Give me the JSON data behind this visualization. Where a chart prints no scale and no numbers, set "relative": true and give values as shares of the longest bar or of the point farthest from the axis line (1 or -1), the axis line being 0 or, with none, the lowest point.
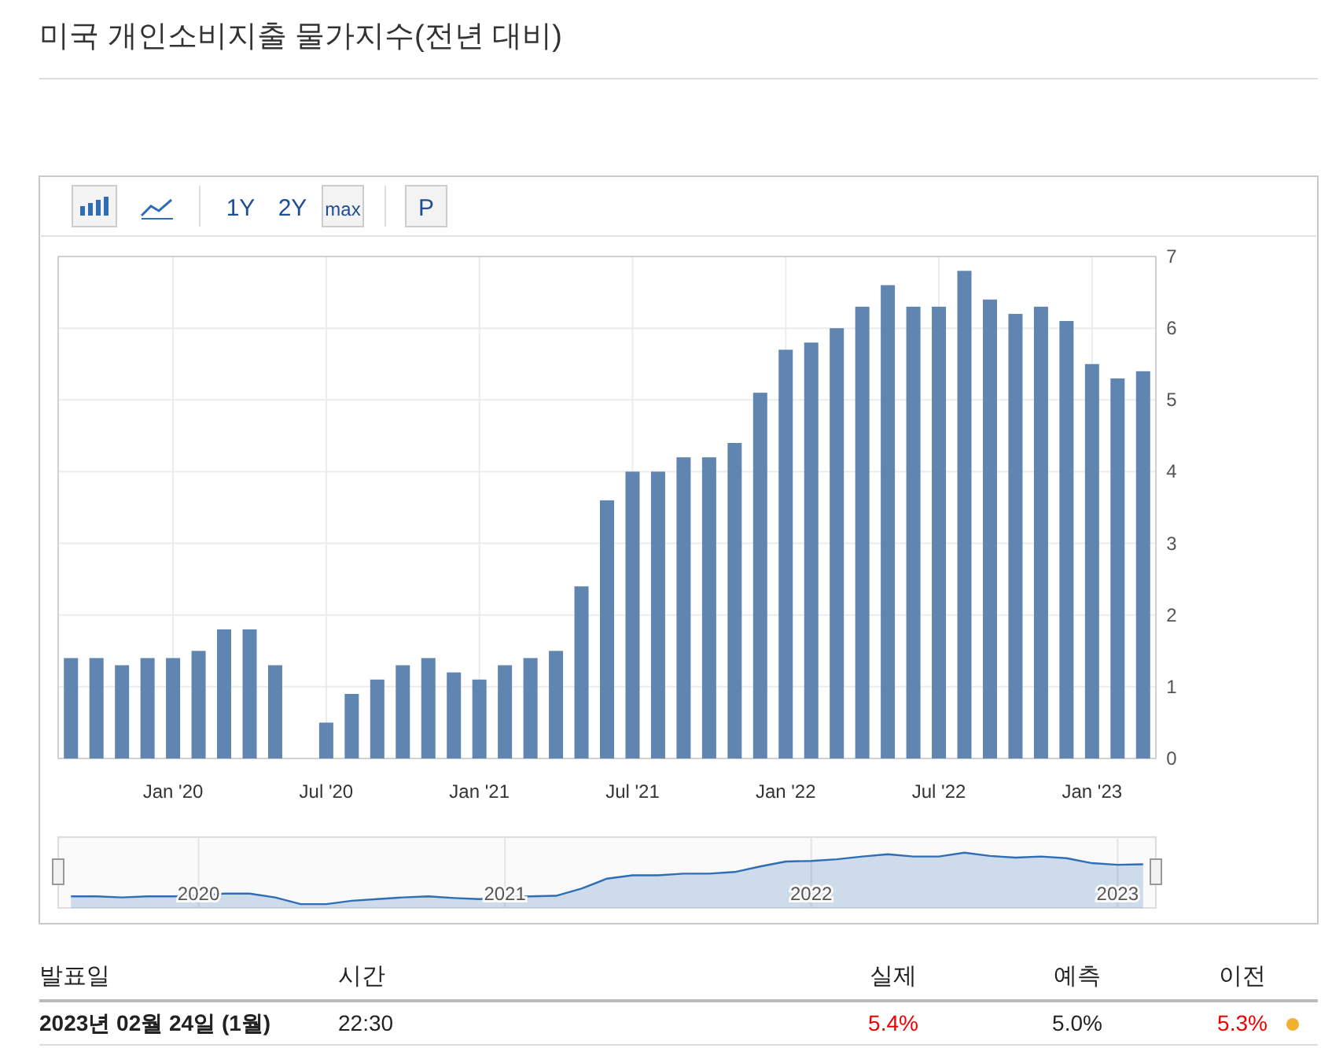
{
  "chart_data": [
    {
      "type": "bar",
      "title": "미국 개인소비지출 물가지수(전년 대비)",
      "categories": [
        null,
        null,
        null,
        null,
        "Jan '20",
        null,
        null,
        null,
        null,
        null,
        "Jul '20",
        null,
        null,
        null,
        null,
        null,
        "Jan '21",
        null,
        null,
        null,
        null,
        null,
        "Jul '21",
        null,
        null,
        null,
        null,
        null,
        "Jan '22",
        null,
        null,
        null,
        null,
        null,
        "Jul '22",
        null,
        null,
        null,
        null,
        null,
        "Jan '23",
        null,
        null
      ],
      "values": [
        1.4,
        1.4,
        1.3,
        1.4,
        1.4,
        1.5,
        1.8,
        1.8,
        1.3,
        null,
        0.5,
        0.9,
        1.1,
        1.3,
        1.4,
        1.2,
        1.1,
        1.3,
        1.4,
        1.5,
        2.4,
        3.6,
        4.0,
        4.0,
        4.2,
        4.2,
        4.4,
        5.1,
        5.7,
        5.8,
        6.0,
        6.3,
        6.6,
        6.3,
        6.3,
        6.8,
        6.4,
        6.2,
        6.3,
        6.1,
        5.5,
        5.3,
        5.4
      ],
      "color": "#5f85b0",
      "ylim": [
        0,
        7
      ],
      "yticks": [
        0,
        1,
        2,
        3,
        4,
        5,
        6,
        7
      ],
      "grid": true,
      "annotations": [
        "1Y",
        "2Y",
        "max",
        "P"
      ]
    },
    {
      "type": "area",
      "relative": true,
      "categories": [
        null,
        null,
        null,
        null,
        null,
        "2020",
        null,
        null,
        null,
        null,
        null,
        null,
        null,
        null,
        null,
        null,
        null,
        "2021",
        null,
        null,
        null,
        null,
        null,
        null,
        null,
        null,
        null,
        null,
        null,
        "2022",
        null,
        null,
        null,
        null,
        null,
        null,
        null,
        null,
        null,
        null,
        null,
        "2023",
        null
      ],
      "values": [
        0.21,
        0.21,
        0.19,
        0.21,
        0.21,
        0.22,
        0.26,
        0.26,
        0.19,
        0.07,
        0.07,
        0.13,
        0.16,
        0.19,
        0.21,
        0.18,
        0.16,
        0.19,
        0.21,
        0.22,
        0.35,
        0.53,
        0.59,
        0.59,
        0.62,
        0.62,
        0.65,
        0.75,
        0.84,
        0.85,
        0.88,
        0.93,
        0.97,
        0.93,
        0.93,
        1,
        0.94,
        0.91,
        0.93,
        0.9,
        0.81,
        0.78,
        0.79
      ],
      "color": "#2f6db5",
      "grid": true
    },
    {
      "type": "other",
      "annotations": [
        "발표일",
        "시간",
        "실제",
        "예측",
        "이전",
        "2023년 02월 24일 (1월)",
        "22:30",
        "5.4%",
        "5.0%",
        "5.3%"
      ]
    }
  ]
}
